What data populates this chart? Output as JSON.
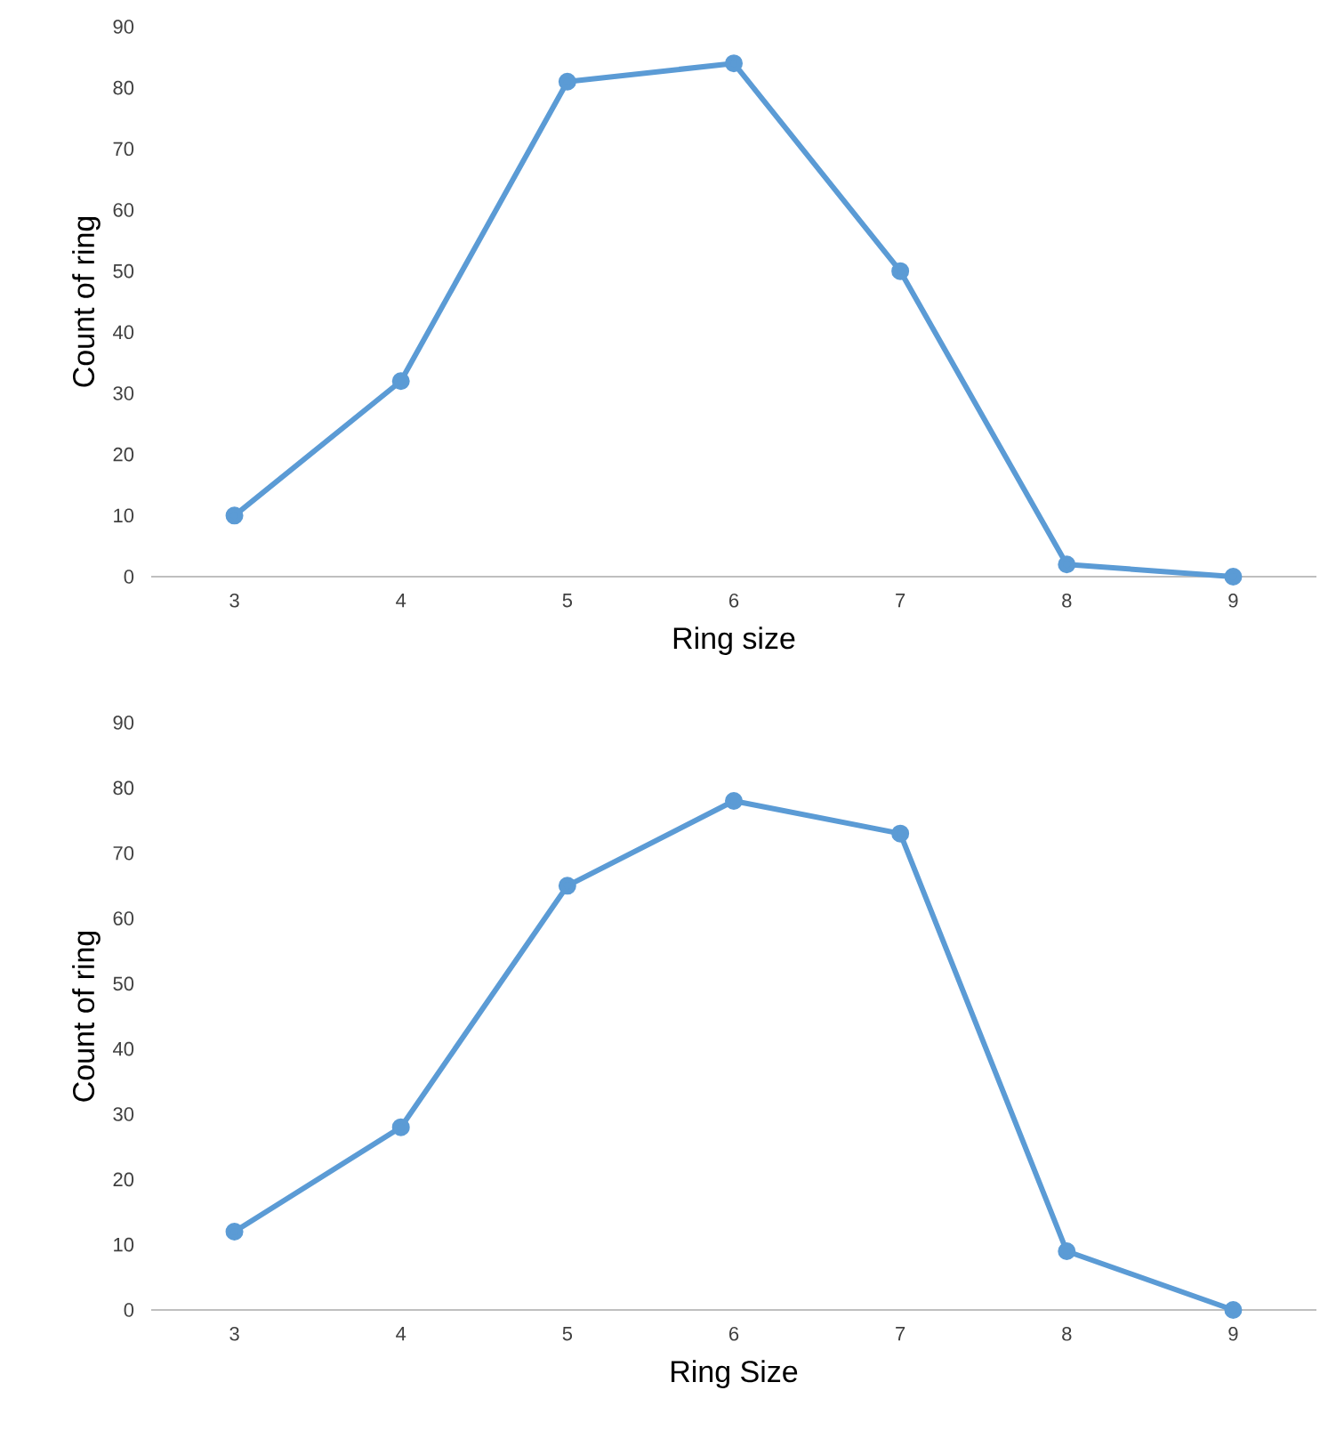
{
  "chart_data": [
    {
      "type": "line",
      "xlabel": "Ring size",
      "ylabel": "Count of ring",
      "categories": [
        "3",
        "4",
        "5",
        "6",
        "7",
        "8",
        "9"
      ],
      "values": [
        10,
        32,
        81,
        84,
        50,
        2,
        0
      ],
      "color": "#5b9bd5",
      "marker": "circle",
      "ylim": [
        0,
        90
      ],
      "yticks": [
        0,
        10,
        20,
        30,
        40,
        50,
        60,
        70,
        80,
        90
      ]
    },
    {
      "type": "line",
      "xlabel": "Ring Size",
      "ylabel": "Count of ring",
      "categories": [
        "3",
        "4",
        "5",
        "6",
        "7",
        "8",
        "9"
      ],
      "values": [
        12,
        28,
        65,
        78,
        73,
        9,
        0
      ],
      "color": "#5b9bd5",
      "marker": "circle",
      "ylim": [
        0,
        90
      ],
      "yticks": [
        0,
        10,
        20,
        30,
        40,
        50,
        60,
        70,
        80,
        90
      ]
    }
  ]
}
